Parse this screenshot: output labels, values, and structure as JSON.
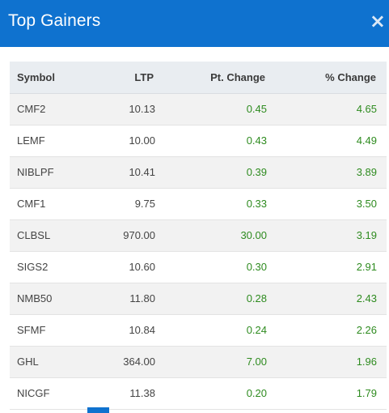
{
  "modal": {
    "title": "Top Gainers",
    "close_glyph": "×"
  },
  "table": {
    "headers": {
      "symbol": "Symbol",
      "ltp": "LTP",
      "pt_change": "Pt. Change",
      "pct_change": "% Change"
    },
    "rows": [
      {
        "symbol": "CMF2",
        "ltp": "10.13",
        "pt": "0.45",
        "pct": "4.65"
      },
      {
        "symbol": "LEMF",
        "ltp": "10.00",
        "pt": "0.43",
        "pct": "4.49"
      },
      {
        "symbol": "NIBLPF",
        "ltp": "10.41",
        "pt": "0.39",
        "pct": "3.89"
      },
      {
        "symbol": "CMF1",
        "ltp": "9.75",
        "pt": "0.33",
        "pct": "3.50"
      },
      {
        "symbol": "CLBSL",
        "ltp": "970.00",
        "pt": "30.00",
        "pct": "3.19"
      },
      {
        "symbol": "SIGS2",
        "ltp": "10.60",
        "pt": "0.30",
        "pct": "2.91"
      },
      {
        "symbol": "NMB50",
        "ltp": "11.80",
        "pt": "0.28",
        "pct": "2.43"
      },
      {
        "symbol": "SFMF",
        "ltp": "10.84",
        "pt": "0.24",
        "pct": "2.26"
      },
      {
        "symbol": "GHL",
        "ltp": "364.00",
        "pt": "7.00",
        "pct": "1.96"
      },
      {
        "symbol": "NICGF",
        "ltp": "11.38",
        "pt": "0.20",
        "pct": "1.79"
      }
    ]
  },
  "colors": {
    "header_bg": "#0f72cf",
    "positive": "#2e8b1f"
  }
}
